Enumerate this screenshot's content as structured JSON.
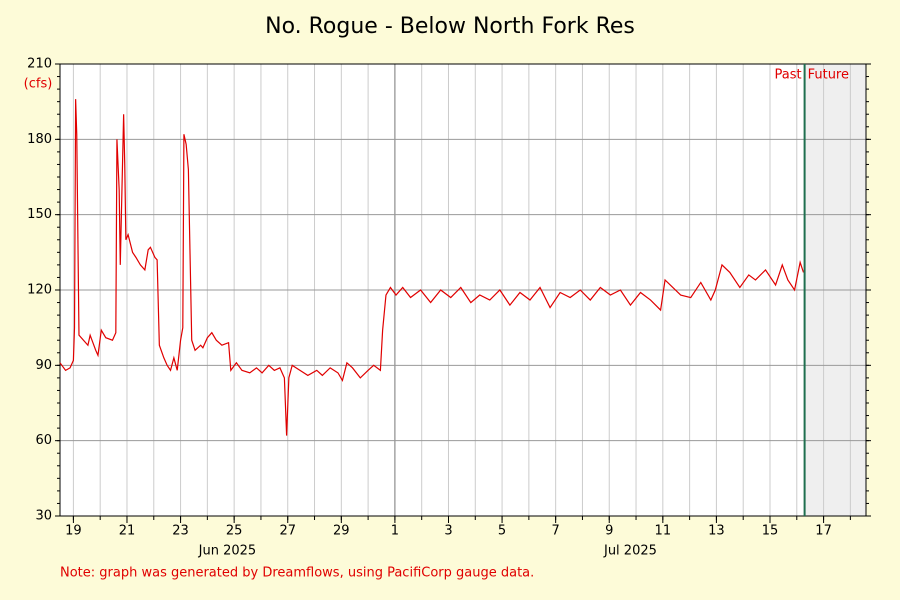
{
  "chart_data": {
    "type": "line",
    "title": "No. Rogue - Below North Fork Res",
    "y_unit_label": "(cfs)",
    "note": "Note: graph was generated by Dreamflows, using PacifiCorp gauge data.",
    "color": "#e00000",
    "grid": true,
    "xlim": [
      "2025-06-18T12:00",
      "2025-07-18T14:00"
    ],
    "ylim": [
      30,
      210
    ],
    "yticks": [
      30,
      60,
      90,
      120,
      150,
      180,
      210
    ],
    "xticks": [
      {
        "value": "2025-06-19T00:00",
        "label": "19"
      },
      {
        "value": "2025-06-21T00:00",
        "label": "21"
      },
      {
        "value": "2025-06-23T00:00",
        "label": "23"
      },
      {
        "value": "2025-06-25T00:00",
        "label": "25"
      },
      {
        "value": "2025-06-27T00:00",
        "label": "27"
      },
      {
        "value": "2025-06-29T00:00",
        "label": "29"
      },
      {
        "value": "2025-07-01T00:00",
        "label": "1"
      },
      {
        "value": "2025-07-03T00:00",
        "label": "3"
      },
      {
        "value": "2025-07-05T00:00",
        "label": "5"
      },
      {
        "value": "2025-07-07T00:00",
        "label": "7"
      },
      {
        "value": "2025-07-09T00:00",
        "label": "9"
      },
      {
        "value": "2025-07-11T00:00",
        "label": "11"
      },
      {
        "value": "2025-07-13T00:00",
        "label": "13"
      },
      {
        "value": "2025-07-15T00:00",
        "label": "15"
      },
      {
        "value": "2025-07-17T00:00",
        "label": "17"
      }
    ],
    "month_labels": [
      "Jun 2025",
      "Jul 2025"
    ],
    "divider": {
      "x": "2025-07-16T07:00",
      "left_label": "Past",
      "right_label": "Future"
    },
    "x": [
      "2025-06-18T12:00",
      "2025-06-18T17:00",
      "2025-06-18T21:00",
      "2025-06-19T00:00",
      "2025-06-19T01:00",
      "2025-06-19T02:00",
      "2025-06-19T03:00",
      "2025-06-19T05:00",
      "2025-06-19T13:00",
      "2025-06-19T15:00",
      "2025-06-19T20:00",
      "2025-06-19T22:00",
      "2025-06-20T01:00",
      "2025-06-20T05:00",
      "2025-06-20T11:00",
      "2025-06-20T14:00",
      "2025-06-20T15:00",
      "2025-06-20T17:00",
      "2025-06-20T18:00",
      "2025-06-20T21:00",
      "2025-06-20T22:00",
      "2025-06-20T23:00",
      "2025-06-21T01:00",
      "2025-06-21T05:00",
      "2025-06-21T08:00",
      "2025-06-21T12:00",
      "2025-06-21T16:00",
      "2025-06-21T19:00",
      "2025-06-21T21:00",
      "2025-06-22T01:00",
      "2025-06-22T03:00",
      "2025-06-22T05:00",
      "2025-06-22T09:00",
      "2025-06-22T12:00",
      "2025-06-22T15:00",
      "2025-06-22T18:00",
      "2025-06-22T21:00",
      "2025-06-23T00:00",
      "2025-06-23T02:00",
      "2025-06-23T03:00",
      "2025-06-23T05:00",
      "2025-06-23T07:00",
      "2025-06-23T10:00",
      "2025-06-23T13:00",
      "2025-06-23T18:00",
      "2025-06-23T20:00",
      "2025-06-24T00:00",
      "2025-06-24T04:00",
      "2025-06-24T08:00",
      "2025-06-24T13:00",
      "2025-06-24T19:00",
      "2025-06-24T21:00",
      "2025-06-25T02:00",
      "2025-06-25T07:00",
      "2025-06-25T14:00",
      "2025-06-25T20:00",
      "2025-06-26T01:00",
      "2025-06-26T07:00",
      "2025-06-26T12:00",
      "2025-06-26T17:00",
      "2025-06-26T21:00",
      "2025-06-26T23:00",
      "2025-06-27T01:00",
      "2025-06-27T04:00",
      "2025-06-27T11:00",
      "2025-06-27T18:00",
      "2025-06-28T02:00",
      "2025-06-28T07:00",
      "2025-06-28T14:00",
      "2025-06-28T21:00",
      "2025-06-29T01:00",
      "2025-06-29T05:00",
      "2025-06-29T10:00",
      "2025-06-29T17:00",
      "2025-06-30T00:00",
      "2025-06-30T05:00",
      "2025-06-30T11:00",
      "2025-06-30T13:00",
      "2025-06-30T16:00",
      "2025-06-30T20:00",
      "2025-07-01T01:00",
      "2025-07-01T07:00",
      "2025-07-01T14:00",
      "2025-07-01T23:00",
      "2025-07-02T08:00",
      "2025-07-02T17:00",
      "2025-07-03T02:00",
      "2025-07-03T11:00",
      "2025-07-03T20:00",
      "2025-07-04T04:00",
      "2025-07-04T13:00",
      "2025-07-04T22:00",
      "2025-07-05T07:00",
      "2025-07-05T16:00",
      "2025-07-06T01:00",
      "2025-07-06T10:00",
      "2025-07-06T19:00",
      "2025-07-07T04:00",
      "2025-07-07T13:00",
      "2025-07-07T22:00",
      "2025-07-08T07:00",
      "2025-07-08T16:00",
      "2025-07-09T01:00",
      "2025-07-09T10:00",
      "2025-07-09T19:00",
      "2025-07-10T04:00",
      "2025-07-10T13:00",
      "2025-07-10T22:00",
      "2025-07-11T02:00",
      "2025-07-11T16:00",
      "2025-07-12T01:00",
      "2025-07-12T10:00",
      "2025-07-12T19:00",
      "2025-07-12T23:00",
      "2025-07-13T05:00",
      "2025-07-13T12:00",
      "2025-07-13T21:00",
      "2025-07-14T05:00",
      "2025-07-14T11:00",
      "2025-07-14T20:00",
      "2025-07-15T05:00",
      "2025-07-15T11:00",
      "2025-07-15T16:00",
      "2025-07-15T22:00",
      "2025-07-16T03:00",
      "2025-07-16T06:00"
    ],
    "values": [
      91,
      88,
      89,
      92,
      105,
      196,
      182,
      102,
      98,
      102,
      96,
      94,
      104,
      101,
      100,
      103,
      180,
      160,
      130,
      190,
      170,
      140,
      142,
      135,
      133,
      130,
      128,
      136,
      137,
      133,
      132,
      98,
      93,
      90,
      88,
      93,
      88,
      100,
      105,
      182,
      178,
      168,
      100,
      96,
      98,
      97,
      101,
      103,
      100,
      98,
      99,
      88,
      91,
      88,
      87,
      89,
      87,
      90,
      88,
      89,
      85,
      62,
      85,
      90,
      88,
      86,
      88,
      86,
      89,
      87,
      84,
      91,
      89,
      85,
      88,
      90,
      88,
      104,
      118,
      121,
      118,
      121,
      117,
      120,
      115,
      120,
      117,
      121,
      115,
      118,
      116,
      120,
      114,
      119,
      116,
      121,
      113,
      119,
      117,
      120,
      116,
      121,
      118,
      120,
      114,
      119,
      116,
      112,
      124,
      118,
      117,
      123,
      116,
      120,
      130,
      127,
      121,
      126,
      124,
      128,
      122,
      130,
      124,
      120,
      131,
      127
    ]
  }
}
